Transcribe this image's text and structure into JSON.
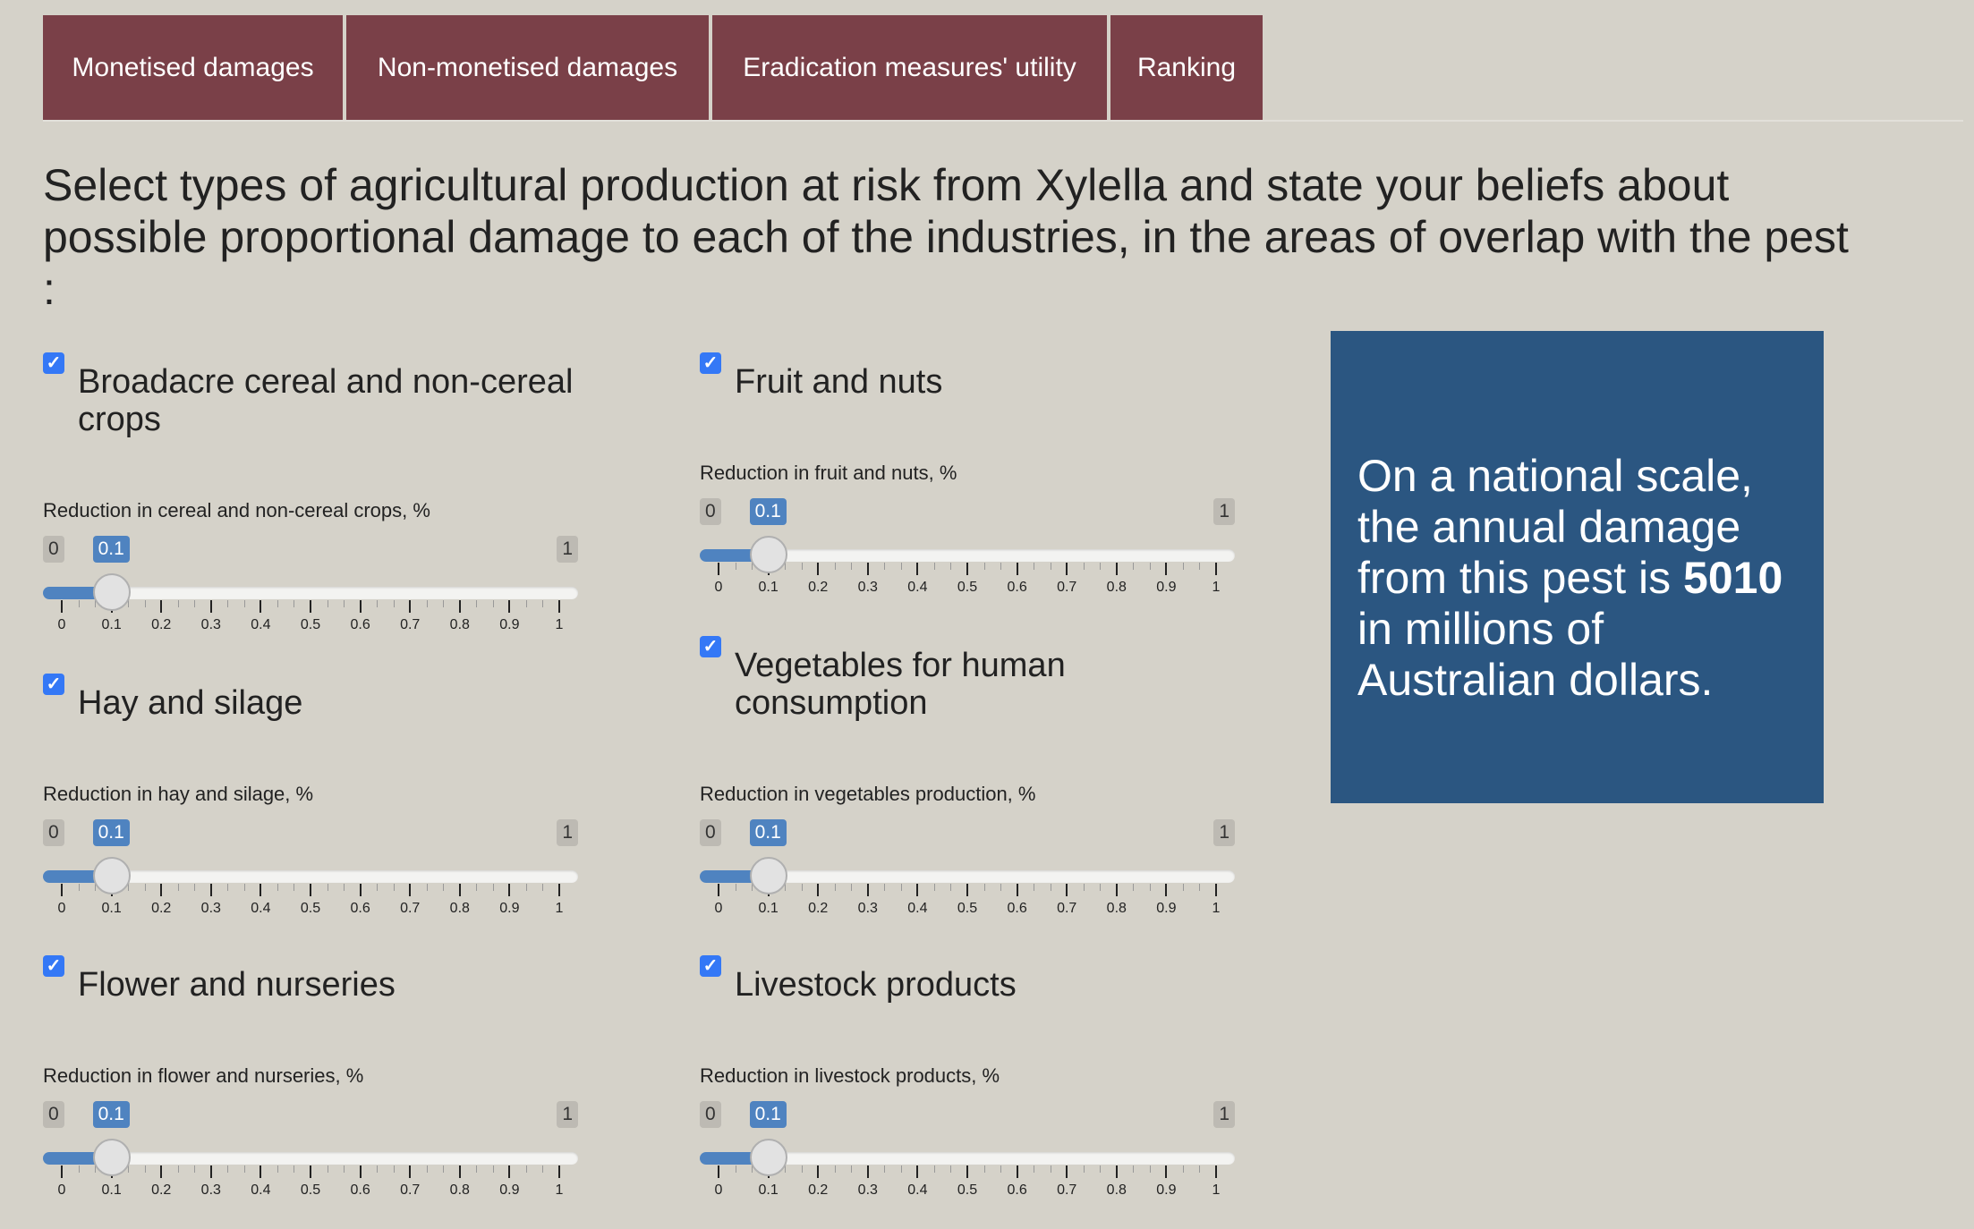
{
  "tabs": [
    "Monetised damages",
    "Non-monetised damages",
    "Eradication measures' utility",
    "Ranking"
  ],
  "heading": {
    "lines": [
      "Select types of agricultural production at risk from Xylella and state your beliefs about",
      "possible proportional damage to each of the industries, in the areas of overlap with the pest",
      ":"
    ]
  },
  "groups": [
    {
      "checked": true,
      "title": "Broadacre cereal and non-cereal crops",
      "slider_label": "Reduction in cereal and non-cereal crops, %",
      "min": "0",
      "max": "1",
      "value": "0.1"
    },
    {
      "checked": true,
      "title": "Fruit and nuts",
      "slider_label": "Reduction in fruit and nuts, %",
      "min": "0",
      "max": "1",
      "value": "0.1"
    },
    {
      "checked": true,
      "title": "Hay and silage",
      "slider_label": "Reduction in hay and silage, %",
      "min": "0",
      "max": "1",
      "value": "0.1"
    },
    {
      "checked": true,
      "title": "Vegetables for human consumption",
      "slider_label": "Reduction in vegetables production, %",
      "min": "0",
      "max": "1",
      "value": "0.1"
    },
    {
      "checked": true,
      "title": "Flower and nurseries",
      "slider_label": "Reduction in flower and nurseries, %",
      "min": "0",
      "max": "1",
      "value": "0.1"
    },
    {
      "checked": true,
      "title": "Livestock products",
      "slider_label": "Reduction in livestock products, %",
      "min": "0",
      "max": "1",
      "value": "0.1"
    }
  ],
  "tick_labels": [
    "0",
    "0.1",
    "0.2",
    "0.3",
    "0.4",
    "0.5",
    "0.6",
    "0.7",
    "0.8",
    "0.9",
    "1"
  ],
  "result": {
    "prefix": "On a national scale, the annual damage from this pest is",
    "amount": "5010",
    "suffix": "in millions of Australian dollars."
  },
  "colors": {
    "tab": "#7a4048",
    "result_box": "#2b5681",
    "slider": "#4f83c0",
    "checkbox": "#3478f6"
  }
}
